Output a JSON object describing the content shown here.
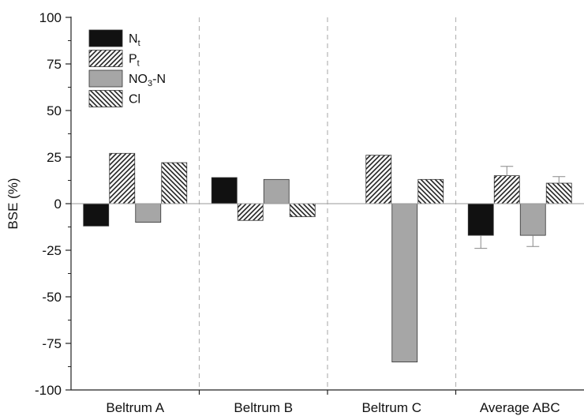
{
  "chart_data": {
    "type": "bar",
    "ylabel": "BSE (%)",
    "ylim": [
      -100,
      100
    ],
    "yticks": [
      100,
      75,
      50,
      25,
      0,
      -25,
      -50,
      -75,
      -100
    ],
    "categories": [
      "Beltrum A",
      "Beltrum B",
      "Beltrum C",
      "Average ABC"
    ],
    "legend_position": "top-left",
    "series": [
      {
        "name": "N",
        "name_sub": "t",
        "pattern": "solid-black",
        "color": "#111111",
        "values": [
          -12,
          14,
          0,
          -17
        ],
        "errors": [
          null,
          null,
          null,
          7
        ]
      },
      {
        "name": "P",
        "name_sub": "t",
        "pattern": "hatch-forward",
        "color": "#ffffff",
        "values": [
          27,
          -9,
          26,
          15
        ],
        "errors": [
          null,
          null,
          null,
          5
        ]
      },
      {
        "name": "NO",
        "name_sub": "3",
        "name_suffix": "-N",
        "pattern": "solid-gray",
        "color": "#a6a6a6",
        "values": [
          -10,
          13,
          -85,
          -17
        ],
        "errors": [
          null,
          null,
          null,
          6
        ]
      },
      {
        "name": "Cl",
        "name_sub": "",
        "pattern": "hatch-backward",
        "color": "#ffffff",
        "values": [
          22,
          -7,
          13,
          11
        ],
        "errors": [
          null,
          null,
          null,
          3.5
        ]
      }
    ]
  }
}
